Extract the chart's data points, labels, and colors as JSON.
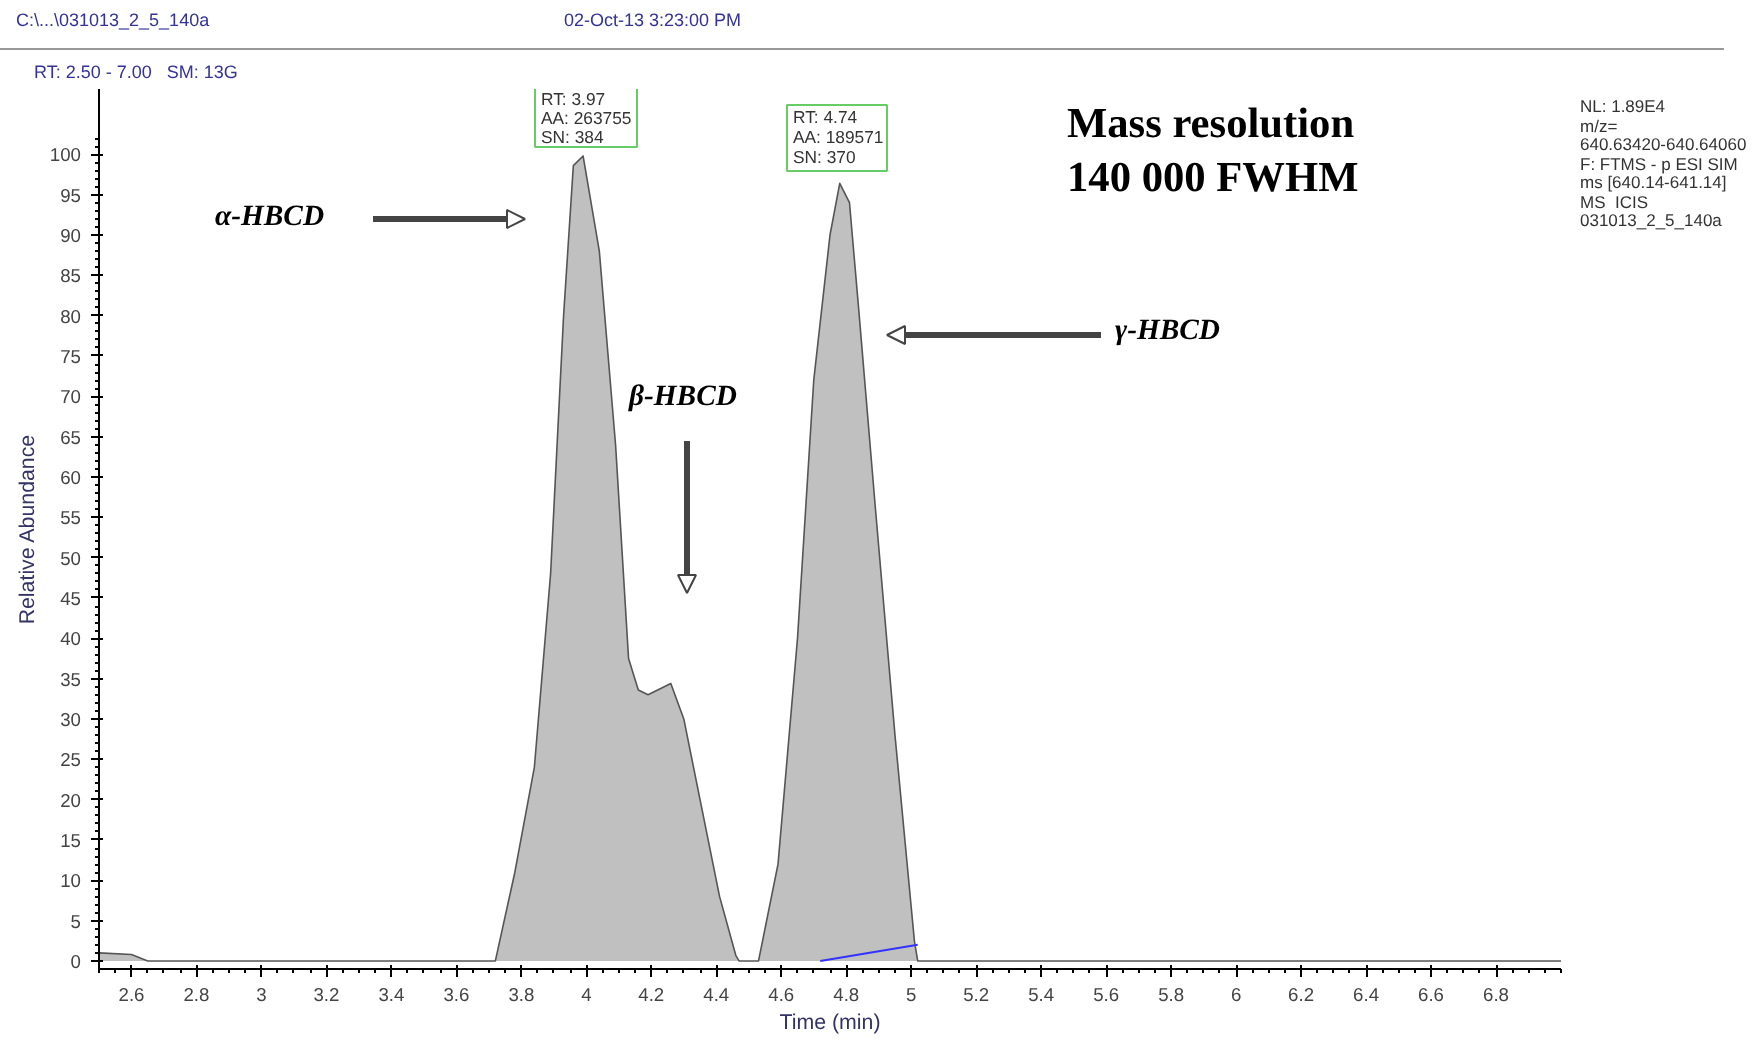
{
  "chart_data": {
    "type": "area",
    "xlabel": "Time (min)",
    "ylabel": "Relative Abundance",
    "xlim": [
      2.5,
      7.0
    ],
    "ylim": [
      -1,
      108.1
    ],
    "xticks": [
      2.6,
      2.8,
      3.0,
      3.2,
      3.4,
      3.6,
      3.8,
      4.0,
      4.2,
      4.4,
      4.6,
      4.8,
      5.0,
      5.2,
      5.4,
      5.6,
      5.8,
      6.0,
      6.2,
      6.4,
      6.6,
      6.8
    ],
    "yticks": [
      0,
      5,
      10,
      15,
      20,
      25,
      30,
      35,
      40,
      45,
      50,
      55,
      60,
      65,
      70,
      75,
      80,
      85,
      90,
      95,
      100
    ],
    "grid": false,
    "series": [
      {
        "color": "#c0c0c0",
        "x": [
          2.5,
          2.6,
          2.65,
          3.0,
          3.5,
          3.72,
          3.78,
          3.84,
          3.89,
          3.93,
          3.96,
          3.99,
          4.04,
          4.09,
          4.13,
          4.16,
          4.19,
          4.26,
          4.3,
          4.35,
          4.41,
          4.46,
          4.47,
          4.53,
          4.59,
          4.65,
          4.7,
          4.75,
          4.78,
          4.81,
          4.84,
          4.89,
          4.95,
          5.01,
          5.02,
          5.5,
          6.0,
          6.5,
          7.0
        ],
        "values": [
          1,
          0.8,
          0,
          0,
          0,
          0,
          11,
          24,
          48,
          80,
          98.6,
          99.8,
          88,
          64,
          37.5,
          33.6,
          33,
          34.4,
          30,
          20,
          8,
          0.7,
          0,
          0,
          12,
          40,
          72,
          90,
          96.4,
          94,
          80,
          56,
          28,
          2.4,
          0,
          0,
          0,
          0,
          0
        ]
      },
      {
        "type": "line",
        "color": "#3333ff",
        "x": [
          4.72,
          5.02
        ],
        "values": [
          0,
          2
        ]
      }
    ],
    "annotations": [
      "C:\\...\\031013_2_5_140a",
      "02-Oct-13 3:23:00 PM",
      "RT: 2.50 - 7.00   SM: 13G",
      "NL: 1.89E4",
      "m/z=",
      "640.63420-640.64060",
      "F: FTMS - p ESI SIM",
      "ms [640.14-641.14]",
      "MS  ICIS",
      "031013_2_5_140a",
      "Mass resolution",
      "140 000 FWHM",
      "RT: 3.97",
      "AA: 263755",
      "SN: 384",
      "RT: 4.74",
      "AA: 189571",
      "SN: 370",
      "α-HBCD",
      "β-HBCD",
      "γ-HBCD"
    ]
  }
}
